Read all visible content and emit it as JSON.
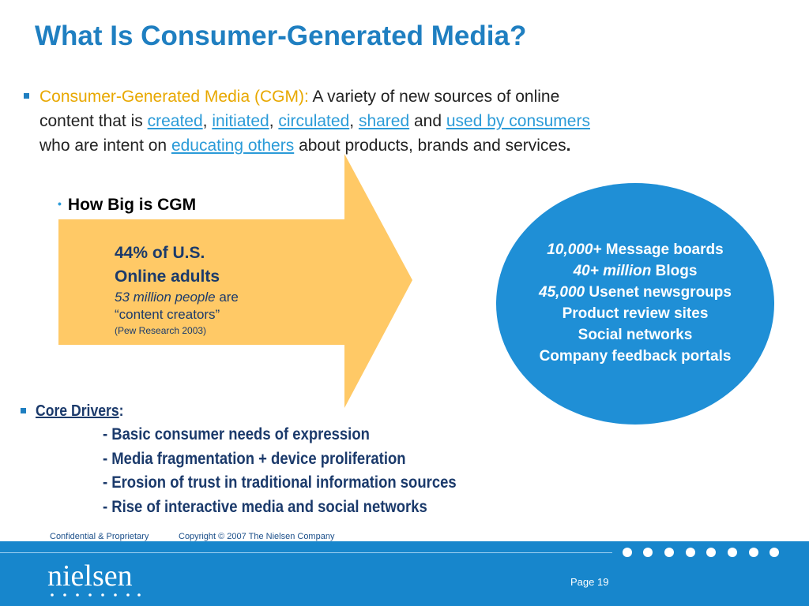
{
  "slide": {
    "title": "What Is Consumer-Generated Media?"
  },
  "intro": {
    "lead": "Consumer-Generated Media (CGM):",
    "t1": " A variety of new sources of online",
    "t2": "content that is ",
    "link_created": "created",
    "sep1": ", ",
    "link_initiated": "initiated",
    "sep2": ", ",
    "link_circulated": "circulated",
    "sep3": ", ",
    "link_shared": "shared",
    "and": " and ",
    "link_used": "used by consumers",
    "t3": "who are intent on ",
    "link_educating": "educating others",
    "t4": " about products, brands and services",
    "period": "."
  },
  "how_big": {
    "bullet": "•",
    "heading": "How Big is CGM",
    "stat_line1": "44% of U.S.",
    "stat_line2": "Online adults",
    "stat_italic": "53 million people",
    "stat_are": " are",
    "stat_quote": "“content creators”",
    "source": "(Pew Research 2003)"
  },
  "circle": {
    "l1_it": "10,000+",
    "l1_rest": " Message boards",
    "l2_it": "40+ million",
    "l2_rest": " Blogs",
    "l3_it": "45,000",
    "l3_rest": " Usenet newsgroups",
    "l4": "Product review sites",
    "l5": "Social networks",
    "l6": "Company feedback portals"
  },
  "drivers": {
    "heading": "Core Drivers",
    "colon": ":",
    "items": [
      "-  Basic consumer needs of expression",
      "-  Media fragmentation + device proliferation",
      "-  Erosion of trust in traditional information sources",
      "-  Rise of interactive media and social networks"
    ]
  },
  "footer": {
    "confidential": "Confidential & Proprietary",
    "copyright": "Copyright © 2007 The Nielsen Company",
    "logo_text": "nielsen",
    "page": "Page 19"
  },
  "colors": {
    "title_blue": "#1f7fc1",
    "lead_yellow": "#e8a800",
    "link_blue": "#2b9bd8",
    "arrow_fill": "#ffc966",
    "circle_fill": "#1f8fd6",
    "footer_blue": "#1786cc",
    "navy_text": "#1b3a6b"
  }
}
